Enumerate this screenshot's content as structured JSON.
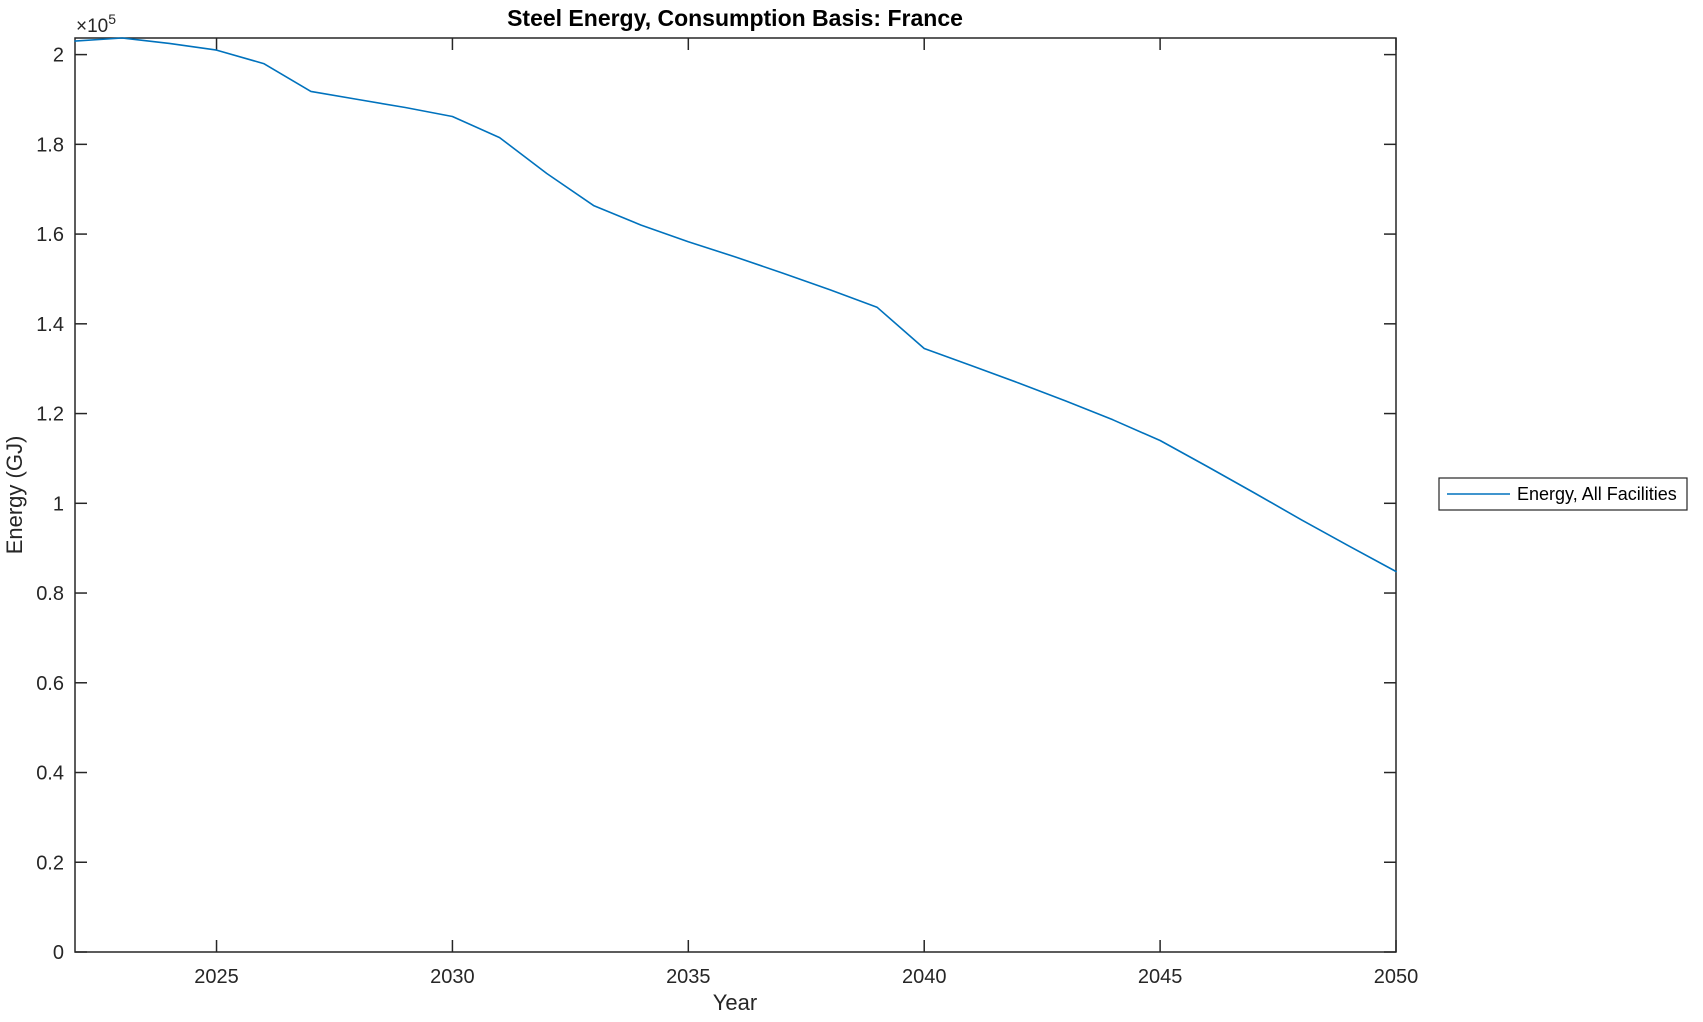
{
  "figure": {
    "title": "Steel Energy, Consumption Basis: France",
    "xlabel": "Year",
    "ylabel": "Energy (GJ)",
    "y_multiplier_base": "×10",
    "y_multiplier_exp": "5"
  },
  "legend": {
    "label": "Energy, All Facilities"
  },
  "colors": {
    "line": "#0072BD",
    "axis": "#262626",
    "title": "#000000",
    "background": "#ffffff"
  },
  "chart_data": {
    "type": "line",
    "title": "Steel Energy, Consumption Basis: France",
    "xlabel": "Year",
    "ylabel": "Energy (GJ)",
    "y_units": "GJ, values shown ×10^5",
    "grid": false,
    "legend_position": "right-outside",
    "xlim": [
      2022,
      2050
    ],
    "ylim": [
      0,
      2.037
    ],
    "xticks": [
      2025,
      2030,
      2035,
      2040,
      2045,
      2050
    ],
    "yticks": [
      0,
      0.2,
      0.4,
      0.6,
      0.8,
      1,
      1.2,
      1.4,
      1.6,
      1.8,
      2
    ],
    "x": [
      2022,
      2023,
      2024,
      2025,
      2026,
      2027,
      2028,
      2029,
      2030,
      2031,
      2032,
      2033,
      2034,
      2035,
      2036,
      2037,
      2038,
      2039,
      2040,
      2041,
      2042,
      2043,
      2044,
      2045,
      2046,
      2047,
      2048,
      2049,
      2050
    ],
    "series": [
      {
        "name": "Energy, All Facilities",
        "color": "#0072BD",
        "values": [
          2.03,
          2.037,
          2.025,
          2.01,
          1.98,
          1.918,
          1.9,
          1.882,
          1.862,
          1.815,
          1.735,
          1.663,
          1.62,
          1.583,
          1.549,
          1.513,
          1.476,
          1.437,
          1.345,
          1.307,
          1.268,
          1.228,
          1.186,
          1.14,
          1.082,
          1.023,
          0.963,
          0.905,
          0.848
        ]
      }
    ]
  }
}
